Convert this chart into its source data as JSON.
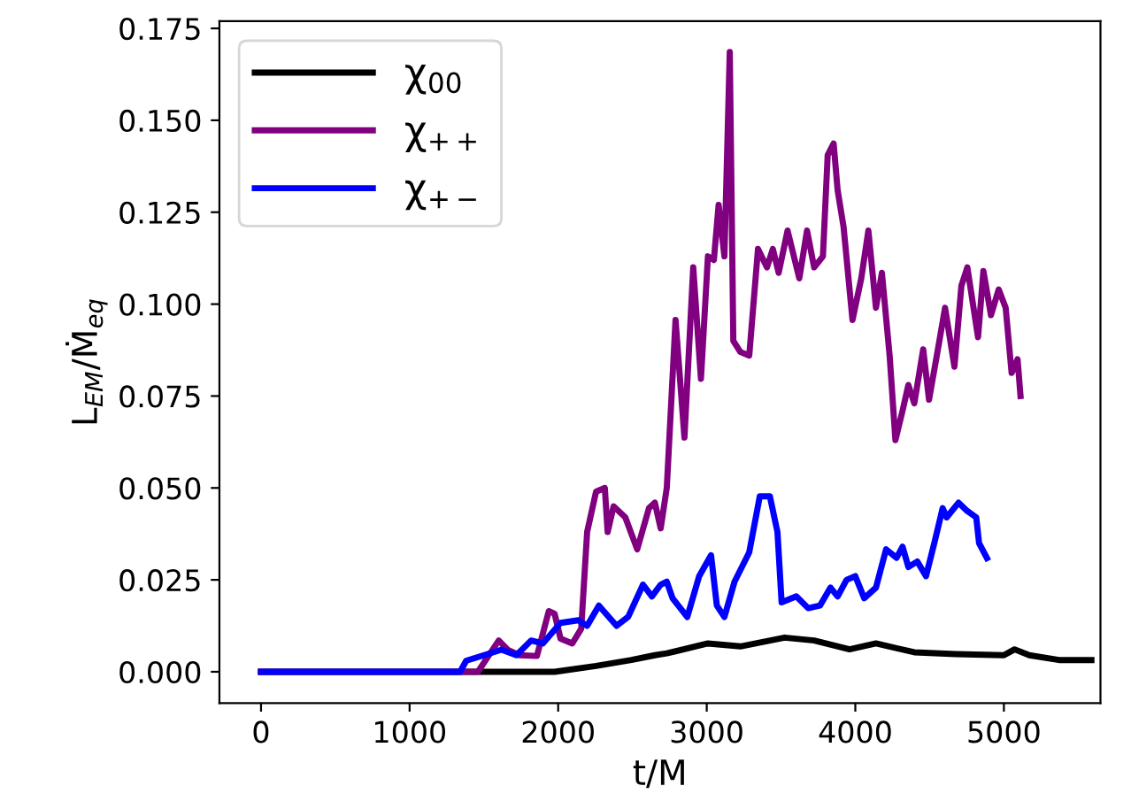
{
  "chart_data": {
    "type": "line",
    "xlabel": "t/M",
    "ylabel": "L$_{EM}$/Ṁ$_{eq}$",
    "xlim": [
      -280,
      5650
    ],
    "xticks": [
      0,
      1000,
      2000,
      3000,
      4000,
      5000
    ],
    "ylim": [
      -0.0085,
      0.177
    ],
    "yticks": [
      {
        "value": 0,
        "label": "0.000"
      },
      {
        "value": 0.025,
        "label": "0.025"
      },
      {
        "value": 0.05,
        "label": "0.050"
      },
      {
        "value": 0.075,
        "label": "0.075"
      },
      {
        "value": 0.1,
        "label": "0.100"
      },
      {
        "value": 0.125,
        "label": "0.125"
      },
      {
        "value": 0.15,
        "label": "0.150"
      },
      {
        "value": 0.175,
        "label": "0.175"
      }
    ],
    "grid": false,
    "legend": "top left",
    "marker": "none",
    "line_style": "solid",
    "series": [
      {
        "name": "χ$_{00}$",
        "color": "#000000",
        "x": [
          0,
          1300,
          1976,
          2255,
          2493,
          2651,
          2731,
          3008,
          3226,
          3524,
          3723,
          3961,
          4139,
          4397,
          4675,
          5000,
          5072,
          5171,
          5370,
          5589
        ],
        "values": [
          0,
          0,
          0,
          0.0016,
          0.0032,
          0.0045,
          0.005,
          0.0077,
          0.0069,
          0.0093,
          0.0085,
          0.0061,
          0.0077,
          0.0053,
          0.0048,
          0.0045,
          0.0061,
          0.0045,
          0.0032,
          0.0032
        ]
      },
      {
        "name": "χ$_{++}$",
        "color": "#800080",
        "x": [
          0,
          1340,
          1460,
          1600,
          1660,
          1740,
          1857,
          1937,
          1976,
          2016,
          2095,
          2155,
          2195,
          2255,
          2314,
          2333,
          2373,
          2452,
          2532,
          2611,
          2651,
          2690,
          2731,
          2790,
          2850,
          2909,
          2961,
          3008,
          3048,
          3080,
          3119,
          3155,
          3179,
          3226,
          3286,
          3345,
          3405,
          3445,
          3484,
          3544,
          3623,
          3675,
          3723,
          3782,
          3814,
          3854,
          3881,
          3921,
          3981,
          4040,
          4088,
          4139,
          4179,
          4231,
          4270,
          4318,
          4357,
          4397,
          4457,
          4496,
          4556,
          4604,
          4667,
          4714,
          4754,
          4826,
          4862,
          4913,
          4965,
          5012,
          5052,
          5092,
          5112
        ],
        "values": [
          0,
          0,
          0,
          0.0085,
          0.006,
          0.0045,
          0.0043,
          0.0165,
          0.0158,
          0.009,
          0.0077,
          0.0117,
          0.038,
          0.049,
          0.05,
          0.038,
          0.045,
          0.042,
          0.0333,
          0.0445,
          0.046,
          0.039,
          0.05,
          0.0957,
          0.0637,
          0.11,
          0.0797,
          0.113,
          0.112,
          0.127,
          0.113,
          0.1686,
          0.09,
          0.087,
          0.086,
          0.115,
          0.11,
          0.115,
          0.1085,
          0.12,
          0.107,
          0.12,
          0.11,
          0.113,
          0.1405,
          0.1437,
          0.131,
          0.121,
          0.0957,
          0.107,
          0.12,
          0.099,
          0.1085,
          0.086,
          0.063,
          0.071,
          0.078,
          0.073,
          0.0877,
          0.074,
          0.0877,
          0.099,
          0.083,
          0.105,
          0.11,
          0.091,
          0.109,
          0.097,
          0.104,
          0.099,
          0.0813,
          0.085,
          0.075
        ]
      },
      {
        "name": "χ$_{+−}$",
        "color": "#0000ff",
        "x": [
          0,
          1340,
          1381,
          1500,
          1619,
          1719,
          1818,
          1897,
          2016,
          2135,
          2195,
          2274,
          2393,
          2472,
          2571,
          2631,
          2690,
          2731,
          2770,
          2869,
          2949,
          3029,
          3068,
          3119,
          3187,
          3286,
          3357,
          3425,
          3476,
          3504,
          3603,
          3683,
          3762,
          3833,
          3881,
          3941,
          4000,
          4060,
          4139,
          4207,
          4278,
          4318,
          4357,
          4417,
          4476,
          4536,
          4588,
          4615,
          4695,
          4754,
          4814,
          4833,
          4886
        ],
        "values": [
          0,
          0,
          0.003,
          0.0045,
          0.006,
          0.0045,
          0.0085,
          0.0077,
          0.0133,
          0.014,
          0.0125,
          0.018,
          0.0125,
          0.015,
          0.0237,
          0.0205,
          0.0237,
          0.0245,
          0.02,
          0.0149,
          0.026,
          0.0317,
          0.018,
          0.0149,
          0.0245,
          0.0325,
          0.0477,
          0.0477,
          0.038,
          0.0189,
          0.0205,
          0.0173,
          0.018,
          0.0229,
          0.0205,
          0.025,
          0.026,
          0.02,
          0.0229,
          0.0333,
          0.031,
          0.034,
          0.0285,
          0.03,
          0.026,
          0.0357,
          0.0445,
          0.042,
          0.046,
          0.0437,
          0.042,
          0.035,
          0.0309
        ]
      }
    ]
  }
}
